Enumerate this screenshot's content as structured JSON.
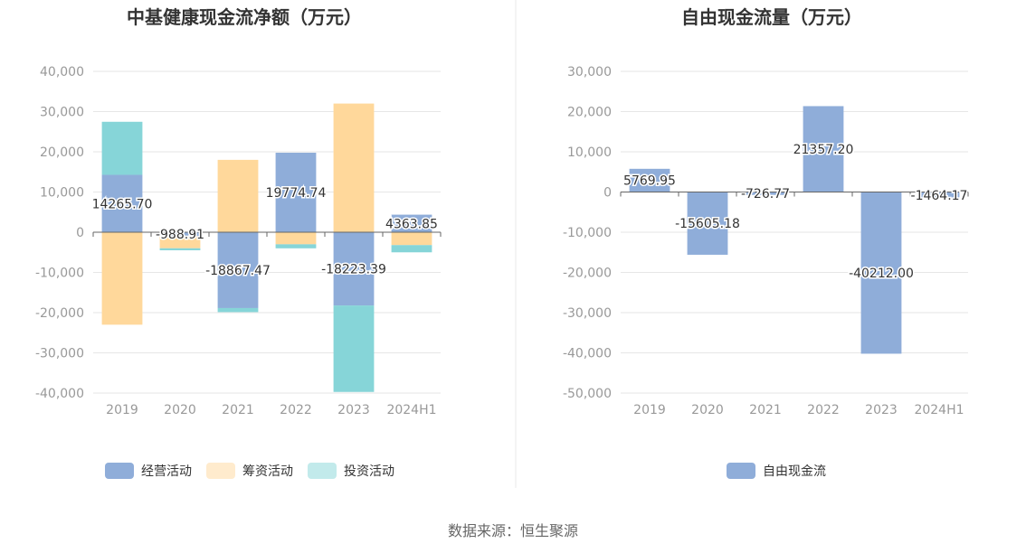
{
  "source": "数据来源：恒生聚源",
  "colors": {
    "operating": "#8fadd9",
    "financing": "#ffd89b",
    "investing": "#86d5d8",
    "free_cash_flow": "#8fadd9",
    "grid": "#e6e6e6",
    "axis": "#666666",
    "tick_text": "#999999",
    "divider": "#e8e8e8"
  },
  "chart_data": [
    {
      "type": "bar",
      "stacked": true,
      "title": "中基健康现金流净额（万元）",
      "categories": [
        "2019",
        "2020",
        "2021",
        "2022",
        "2023",
        "2024H1"
      ],
      "ylim": [
        -40000,
        40000
      ],
      "yticks": [
        40000,
        30000,
        20000,
        10000,
        0,
        -10000,
        -20000,
        -30000,
        -40000
      ],
      "ytick_labels": [
        "40,000",
        "30,000",
        "20,000",
        "10,000",
        "0",
        "-10,000",
        "-20,000",
        "-30,000",
        "-40,000"
      ],
      "grid": true,
      "legend_position": "bottom",
      "series": [
        {
          "name": "经营活动",
          "color_key": "operating",
          "values": [
            14265.7,
            -988.91,
            -18867.47,
            19774.74,
            -18223.39,
            4363.85
          ]
        },
        {
          "name": "筹资活动",
          "color_key": "financing",
          "values": [
            -23000,
            -3000,
            18000,
            -3000,
            32000,
            -3200
          ]
        },
        {
          "name": "投资活动",
          "color_key": "investing",
          "values": [
            13200,
            -500,
            -1000,
            -1000,
            -21500,
            -1800
          ]
        }
      ],
      "data_labels": [
        {
          "category": "2019",
          "text": "14265.70"
        },
        {
          "category": "2020",
          "text": "-988.91"
        },
        {
          "category": "2021",
          "text": "-18867.47"
        },
        {
          "category": "2022",
          "text": "19774.74"
        },
        {
          "category": "2023",
          "text": "-18223.39"
        },
        {
          "category": "2024H1",
          "text": "4363.85"
        }
      ]
    },
    {
      "type": "bar",
      "title": "自由现金流量（万元）",
      "categories": [
        "2019",
        "2020",
        "2021",
        "2022",
        "2023",
        "2024H1"
      ],
      "ylim": [
        -50000,
        30000
      ],
      "yticks": [
        30000,
        20000,
        10000,
        0,
        -10000,
        -20000,
        -30000,
        -40000,
        -50000
      ],
      "ytick_labels": [
        "30,000",
        "20,000",
        "10,000",
        "0",
        "-10,000",
        "-20,000",
        "-30,000",
        "-40,000",
        "-50,000"
      ],
      "grid": true,
      "legend_position": "bottom",
      "series": [
        {
          "name": "自由现金流",
          "color_key": "free_cash_flow",
          "values": [
            5769.95,
            -15605.18,
            -726.77,
            21357.2,
            -40212.0,
            -1464.17
          ]
        }
      ],
      "data_labels": [
        {
          "category": "2019",
          "text": "5769.95"
        },
        {
          "category": "2020",
          "text": "-15605.18"
        },
        {
          "category": "2021",
          "text": "-726.77"
        },
        {
          "category": "2022",
          "text": "21357.20"
        },
        {
          "category": "2023",
          "text": "-40212.00"
        },
        {
          "category": "2024H1",
          "text": "-1464.17"
        }
      ]
    }
  ]
}
